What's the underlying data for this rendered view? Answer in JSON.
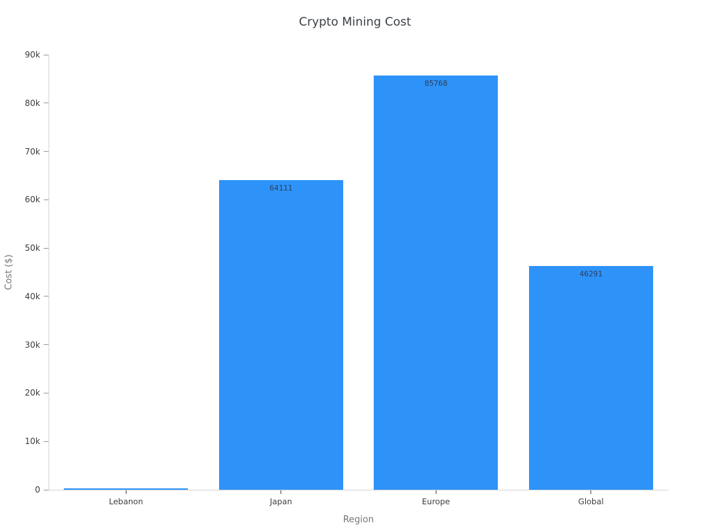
{
  "page": {
    "title": "Crypto Mining Cost"
  },
  "chart_data": {
    "type": "bar",
    "title": "Crypto Mining Cost",
    "xlabel": "Region",
    "ylabel": "Cost ($)",
    "categories": [
      "Lebanon",
      "Japan",
      "Europe",
      "Global"
    ],
    "values": [
      300,
      64111,
      85768,
      46291
    ],
    "bar_labels": [
      "",
      "64111",
      "85768",
      "46291"
    ],
    "ylim": [
      0,
      90000
    ],
    "ytick_step": 10000,
    "ytick_labels": [
      "0",
      "10k",
      "20k",
      "30k",
      "40k",
      "50k",
      "60k",
      "70k",
      "80k",
      "90k"
    ],
    "bar_color": "#2E93F8",
    "bar_label_color": "#2a3f5f",
    "axis_line_color": "#d6d6d6",
    "tick_color": "#999999",
    "grid": false,
    "legend": "none",
    "background": "#ffffff"
  }
}
